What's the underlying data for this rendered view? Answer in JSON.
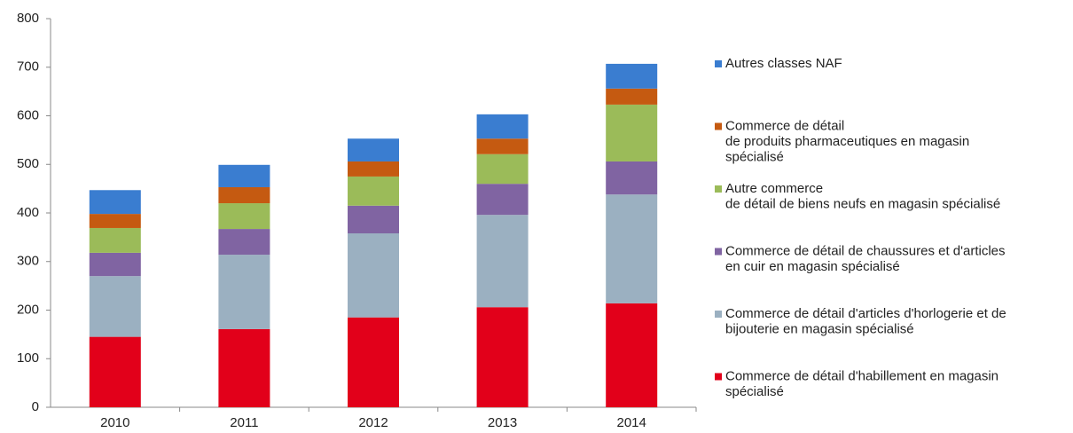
{
  "chart_data": {
    "type": "stacked_bar",
    "categories": [
      "2010",
      "2011",
      "2012",
      "2013",
      "2014"
    ],
    "series": [
      {
        "name": "Commerce de détail d'habillement en magasin\nspécialisé",
        "color": "#e2001a",
        "values": [
          145,
          161,
          185,
          206,
          214
        ]
      },
      {
        "name": "Commerce de détail d'articles d'horlogerie et de\nbijouterie en magasin spécialisé",
        "color": "#9bb0c1",
        "values": [
          125,
          153,
          173,
          190,
          224
        ]
      },
      {
        "name": "Commerce de détail de chaussures et d'articles\nen cuir en magasin spécialisé",
        "color": "#8064a2",
        "values": [
          48,
          53,
          57,
          64,
          68
        ]
      },
      {
        "name": "Autre commerce\nde détail de biens neufs en magasin spécialisé",
        "color": "#9bbb59",
        "values": [
          51,
          53,
          60,
          61,
          117
        ]
      },
      {
        "name": "Commerce de détail\nde produits pharmaceutiques en magasin\nspécialisé",
        "color": "#c55a11",
        "values": [
          29,
          33,
          31,
          32,
          33
        ]
      },
      {
        "name": "Autres classes NAF",
        "color": "#3a7dd0",
        "values": [
          49,
          46,
          47,
          50,
          51
        ]
      }
    ],
    "ylim": [
      0,
      800
    ],
    "yticks": [
      0,
      100,
      200,
      300,
      400,
      500,
      600,
      700,
      800
    ],
    "grid": false,
    "legend": "right"
  }
}
